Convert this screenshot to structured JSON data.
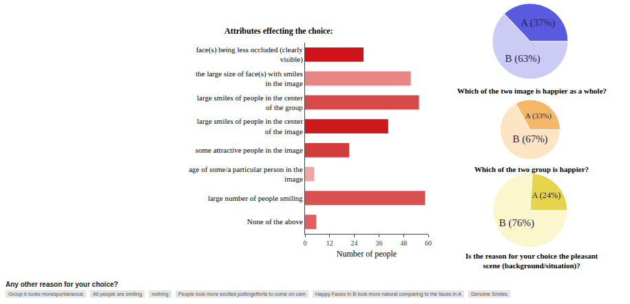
{
  "images": [
    {
      "label": "A"
    },
    {
      "label": "B"
    }
  ],
  "chart_data": [
    {
      "type": "bar",
      "title": "Attributes effecting the choice:",
      "orientation": "horizontal",
      "categories": [
        "face(s) being less occluded (clearly visible)",
        "the large size of face(s) with smiles in the image",
        "large smiles of people in the center of the group",
        "large smiles of people in the center of the image",
        "some attractive people in the image",
        "age of some/a particular person in the image",
        "large number of people smiling",
        "None of the above"
      ],
      "values": [
        28.5,
        51.5,
        55.5,
        40.5,
        21.5,
        4.5,
        58.5,
        5.5
      ],
      "colors": [
        "#d0121b",
        "#e88585",
        "#d84a4a",
        "#cc1a1a",
        "#d23c3c",
        "#f0a5a5",
        "#d95050",
        "#e06060"
      ],
      "xlabel": "Number of people",
      "xlim": [
        0,
        60
      ],
      "xticks": [
        0,
        12,
        24,
        36,
        48,
        60
      ],
      "grid": false
    },
    {
      "type": "pie",
      "title": "Which of the two image is happier as a whole?",
      "categories": [
        "B",
        "A"
      ],
      "values": [
        63,
        37
      ],
      "value_labels": [
        "B (63%)",
        "A (37%)"
      ],
      "colors": [
        "#cbcbf5",
        "#5a5ae0"
      ],
      "data_labels": true
    },
    {
      "type": "pie",
      "title": "Which of the two group is happier?",
      "categories": [
        "B",
        "A"
      ],
      "values": [
        67,
        33
      ],
      "value_labels": [
        "B (67%)",
        "A (33%)"
      ],
      "colors": [
        "#fde4c2",
        "#f5b86a"
      ],
      "data_labels": true
    },
    {
      "type": "pie",
      "title": "Is the reason for your choice the pleasant scene (background/situation)?",
      "categories": [
        "B",
        "A"
      ],
      "values": [
        76,
        24
      ],
      "value_labels": [
        "B (76%)",
        "A (24%)"
      ],
      "colors": [
        "#fbf6cc",
        "#e6d54c"
      ],
      "data_labels": true
    }
  ],
  "footer": {
    "question": "Any other reason for your choice?",
    "answers": [
      "Group b looks morespontaneous",
      "All people are smiling",
      "nothing",
      "People look more excited puttingefforts to come on cam",
      "Happy Faces In B look more natural comparing to the faces in A",
      "Genuine Smiles"
    ]
  }
}
